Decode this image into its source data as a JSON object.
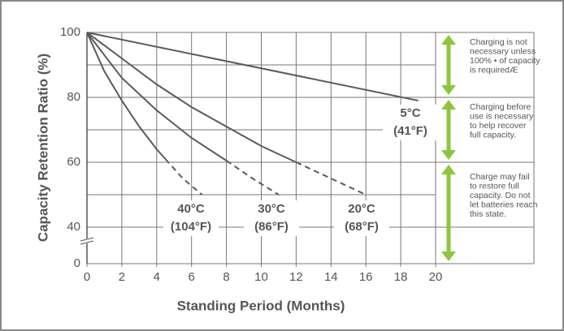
{
  "chart_data": {
    "type": "line",
    "y_label": "Capacity Retention Ratio (%)",
    "x_label": "Standing Period (Months)",
    "xlim": [
      0,
      20
    ],
    "xticks": [
      0,
      2,
      4,
      6,
      8,
      10,
      12,
      14,
      16,
      18,
      20
    ],
    "ylim": [
      40,
      100
    ],
    "yticks": [
      100,
      80,
      60,
      40,
      0
    ],
    "y_minor_grid": [
      90,
      70,
      50
    ],
    "axis_break": true,
    "grid": true,
    "color": "#5a5a5a",
    "series": [
      {
        "name": "5°C",
        "name_f": "(41°F)",
        "x": [
          0,
          19
        ],
        "values": [
          100,
          79
        ],
        "dash_from_index": null
      },
      {
        "name": "20°C",
        "name_f": "(68°F)",
        "x": [
          0,
          2,
          4,
          6,
          8,
          10,
          12,
          14,
          16
        ],
        "values": [
          100,
          92,
          84,
          77,
          71,
          65,
          60,
          55,
          50
        ],
        "dash_from_index": 6
      },
      {
        "name": "30°C",
        "name_f": "(86°F)",
        "x": [
          0,
          2,
          4,
          6,
          8,
          9.5,
          11
        ],
        "values": [
          100,
          86,
          76,
          67.5,
          60.5,
          55,
          50
        ],
        "dash_from_index": 4
      },
      {
        "name": "40°C",
        "name_f": "(104°F)",
        "x": [
          0,
          1,
          2,
          3,
          4,
          4.5,
          5.5,
          6.6
        ],
        "values": [
          100,
          88,
          79,
          71,
          64,
          61,
          55,
          50
        ],
        "dash_from_index": 5
      }
    ],
    "zones": [
      {
        "range": [
          100,
          80
        ],
        "lines": [
          "Charging is not",
          "necessary unless",
          "100% • of capacity",
          "is requiredÆ"
        ]
      },
      {
        "range": [
          80,
          60
        ],
        "lines": [
          "Charging before",
          "use is necessary",
          "to help recover",
          "full capacity."
        ]
      },
      {
        "range": [
          60,
          0
        ],
        "lines": [
          "Charge may fail",
          "to restore full",
          "capacity. Do not",
          "let batteries reach",
          "this state."
        ]
      }
    ],
    "zone_color": "#8cc63e"
  }
}
